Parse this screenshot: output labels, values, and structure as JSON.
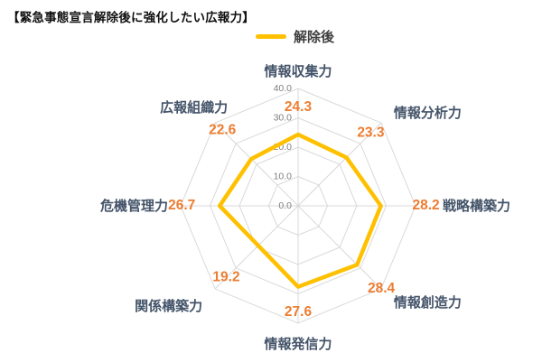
{
  "title": "【緊急事態宣言解除後に強化したい広報力】",
  "legend": {
    "label": "解除後"
  },
  "colors": {
    "line": "#FFC000",
    "value_label": "#ED7D31",
    "axis_label": "#44546A",
    "grid": "#D9D9D9",
    "tick": "#7F7F7F"
  },
  "chart_data": {
    "type": "radar",
    "title": "緊急事態宣言解除後に強化したい広報力",
    "categories": [
      "情報収集力",
      "情報分析力",
      "戦略構築力",
      "情報創造力",
      "情報発信力",
      "関係構築力",
      "危機管理力",
      "広報組織力"
    ],
    "series": [
      {
        "name": "解除後",
        "values": [
          24.3,
          23.3,
          28.2,
          28.4,
          27.6,
          19.2,
          26.7,
          22.6
        ]
      }
    ],
    "rmin": 0,
    "rmax": 40,
    "rticks": [
      0,
      10,
      20,
      30,
      40
    ],
    "grid": true,
    "legend_position": "top"
  }
}
